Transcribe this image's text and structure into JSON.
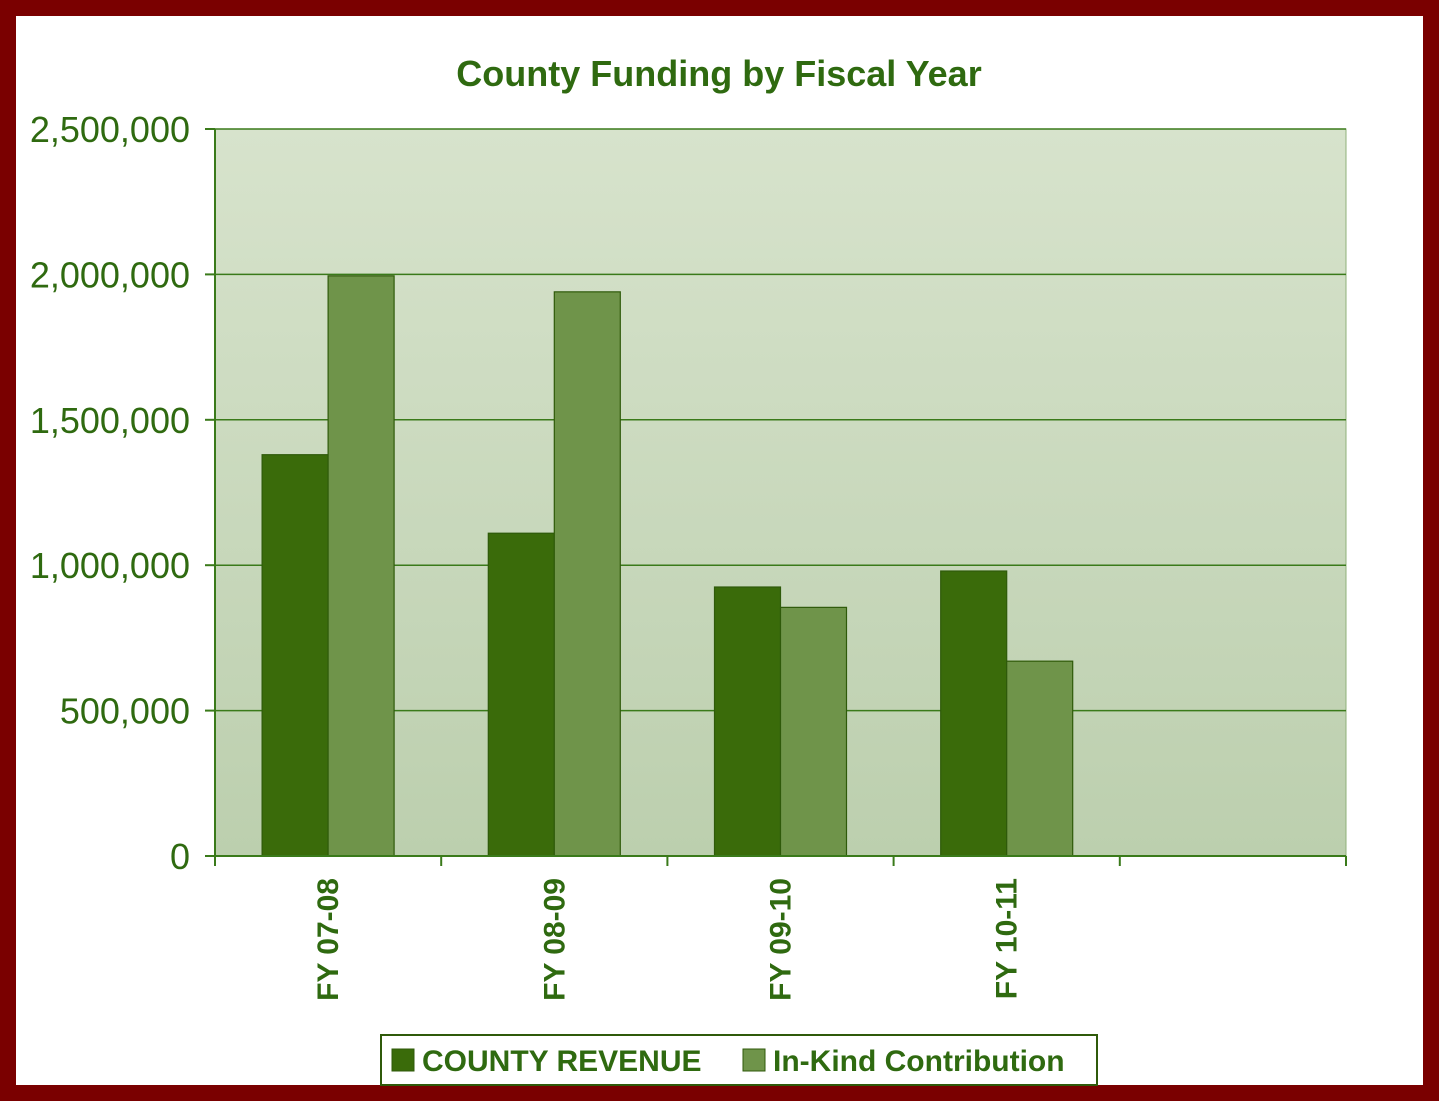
{
  "chart_data": {
    "type": "bar",
    "title": "County Funding by Fiscal Year",
    "xlabel": "",
    "ylabel": "",
    "categories": [
      "FY 07-08",
      "FY 08-09",
      "FY 09-10",
      "FY 10-11",
      ""
    ],
    "series": [
      {
        "name": "COUNTY REVENUE",
        "color": "#3a6b0a",
        "values": [
          1380000,
          1110000,
          925000,
          980000,
          null
        ]
      },
      {
        "name": "In-Kind Contribution",
        "color": "#6f944a",
        "values": [
          1995000,
          1940000,
          855000,
          670000,
          null
        ]
      }
    ],
    "ylim": [
      0,
      2500000
    ],
    "yticks": [
      0,
      500000,
      1000000,
      1500000,
      2000000,
      2500000
    ],
    "ytick_labels": [
      "0",
      "500,000",
      "1,000,000",
      "1,500,000",
      "2,000,000",
      "2,500,000"
    ],
    "grid": true,
    "legend_position": "bottom"
  },
  "colors": {
    "frame": "#7a0000",
    "text": "#2f6a10",
    "gridline": "#3a7a1a",
    "plot_bg_top": "#d7e3cc",
    "plot_bg_bottom": "#bccfae"
  }
}
